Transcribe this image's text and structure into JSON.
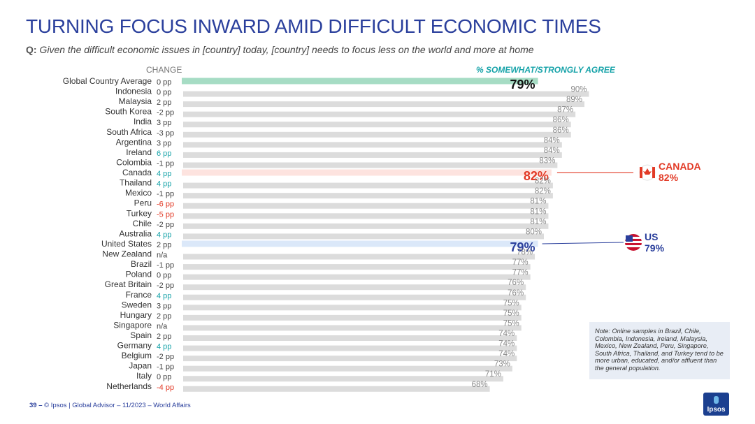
{
  "title": "TURNING FOCUS INWARD AMID DIFFICULT ECONOMIC TIMES",
  "question_label": "Q:",
  "question_text": "Given the difficult economic issues in [country] today, [country] needs to focus less on the world and more at home",
  "header_change": "CHANGE",
  "header_agree": "% SOMEWHAT/STRONGLY AGREE",
  "colors": {
    "title": "#2a3f9c",
    "bar": "#dcdcdc",
    "global_bar": "#a6dcc4",
    "canada_bar": "#fde3df",
    "us_bar": "#dbe8f9",
    "positive": "#17a3a9",
    "negative": "#e23a26",
    "neutral": "#444444",
    "canada": "#e23a26",
    "us": "#2a3f9c"
  },
  "chart_data": {
    "type": "bar",
    "orientation": "horizontal",
    "xlim": [
      0,
      100
    ],
    "categories": [
      "Global Country Average",
      "Indonesia",
      "Malaysia",
      "South Korea",
      "India",
      "South Africa",
      "Argentina",
      "Ireland",
      "Colombia",
      "Canada",
      "Thailand",
      "Mexico",
      "Peru",
      "Turkey",
      "Chile",
      "Australia",
      "United States",
      "New Zealand",
      "Brazil",
      "Poland",
      "Great Britain",
      "France",
      "Sweden",
      "Hungary",
      "Singapore",
      "Spain",
      "Germany",
      "Belgium",
      "Japan",
      "Italy",
      "Netherlands"
    ],
    "values": [
      79,
      90,
      89,
      87,
      86,
      86,
      84,
      84,
      83,
      82,
      82,
      82,
      81,
      81,
      81,
      80,
      79,
      78,
      77,
      77,
      76,
      76,
      75,
      75,
      75,
      74,
      74,
      74,
      73,
      71,
      68
    ],
    "value_labels": [
      "79%",
      "90%",
      "89%",
      "87%",
      "86%",
      "86%",
      "84%",
      "84%",
      "83%",
      "82%",
      "82%",
      "82%",
      "81%",
      "81%",
      "81%",
      "80%",
      "79%",
      "78%",
      "77%",
      "77%",
      "76%",
      "76%",
      "75%",
      "75%",
      "75%",
      "74%",
      "74%",
      "74%",
      "73%",
      "71%",
      "68%"
    ],
    "change_labels": [
      "0 pp",
      "0 pp",
      "2 pp",
      "-2 pp",
      "3 pp",
      "-3 pp",
      "3 pp",
      "6 pp",
      "-1 pp",
      "4 pp",
      "4 pp",
      "-1 pp",
      "-6 pp",
      "-5 pp",
      "-2 pp",
      "4 pp",
      "2 pp",
      "n/a",
      "-1 pp",
      "0 pp",
      "-2 pp",
      "4 pp",
      "3 pp",
      "2 pp",
      "n/a",
      "2 pp",
      "4 pp",
      "-2 pp",
      "-1 pp",
      "0 pp",
      "-4 pp"
    ],
    "change_colors": [
      "neutral",
      "neutral",
      "neutral",
      "neutral",
      "neutral",
      "neutral",
      "neutral",
      "positive",
      "neutral",
      "positive",
      "positive",
      "neutral",
      "negative",
      "negative",
      "neutral",
      "positive",
      "neutral",
      "neutral",
      "neutral",
      "neutral",
      "neutral",
      "positive",
      "neutral",
      "neutral",
      "neutral",
      "neutral",
      "positive",
      "neutral",
      "neutral",
      "neutral",
      "negative"
    ],
    "highlight": {
      "Global Country Average": "global",
      "Canada": "canada",
      "United States": "us"
    }
  },
  "callouts": {
    "canada_name": "CANADA",
    "canada_value": "82%",
    "us_name": "US",
    "us_value": "79%"
  },
  "note": "Note: Online samples in Brazil, Chile, Colombia, Indonesia, Ireland, Malaysia, Mexico, New Zealand, Peru, Singapore, South Africa, Thailand, and Turkey tend to be more urban, educated, and/or affluent than the general population.",
  "footer_page": "39 –",
  "footer_text": "© Ipsos | Global Advisor – 11/2023 – World Affairs",
  "logo_text": "Ipsos"
}
